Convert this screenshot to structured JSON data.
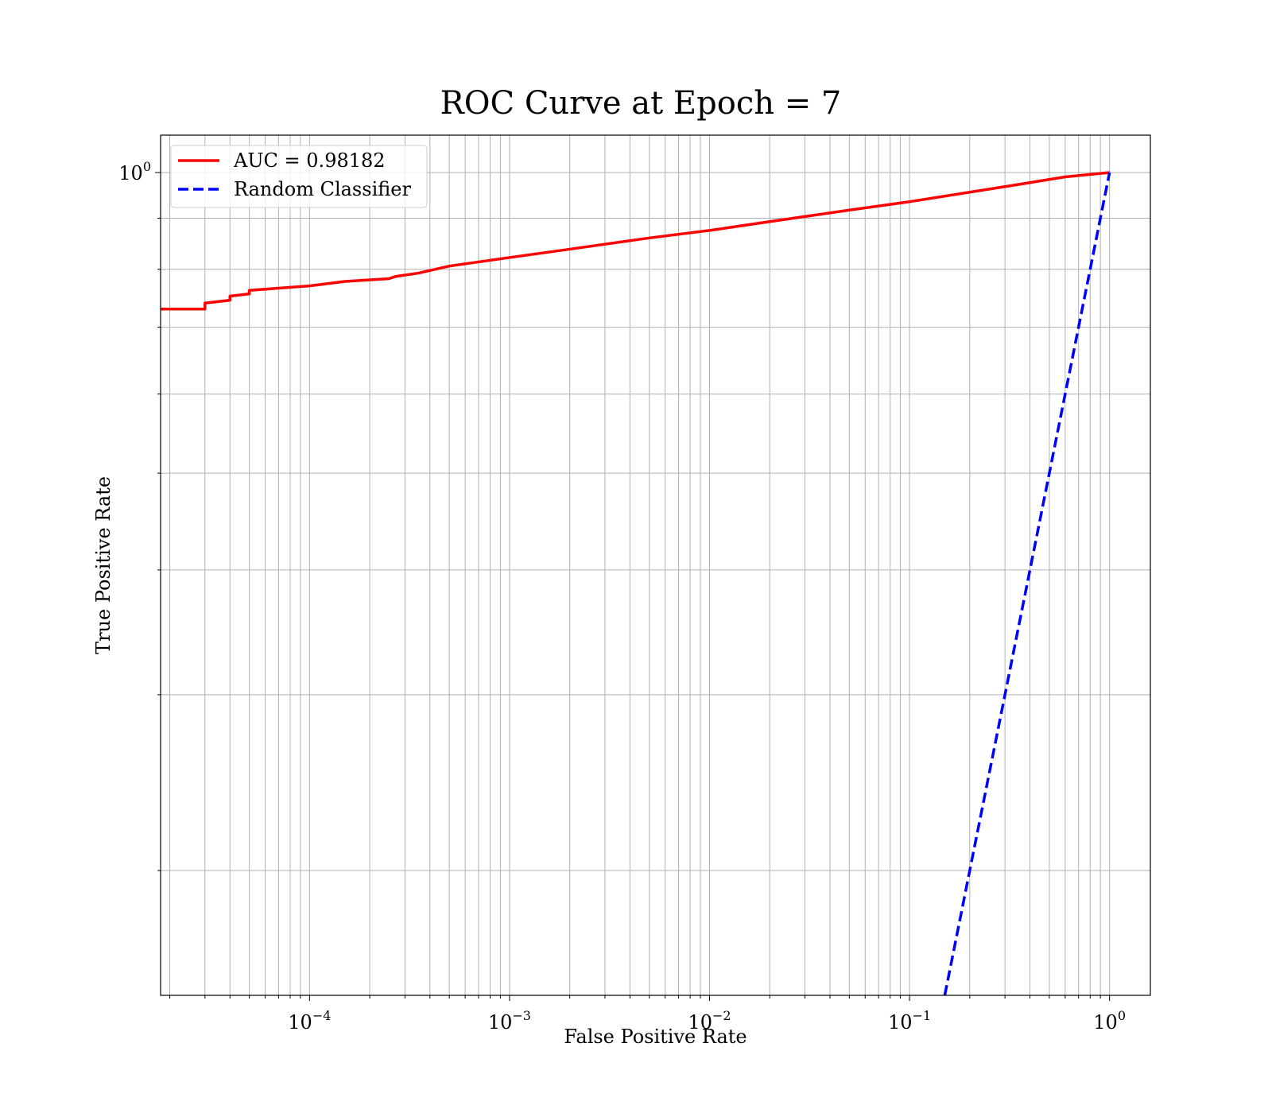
{
  "chart_data": {
    "type": "line",
    "title": "ROC Curve at Epoch = 7",
    "xlabel": "False Positive Rate",
    "ylabel": "True Positive Rate",
    "xscale": "log",
    "yscale": "log",
    "xlim": [
      1.8e-05,
      1.6
    ],
    "ylim": [
      0.15,
      1.09
    ],
    "grid": true,
    "grid_minor": true,
    "legend_position": "upper-left",
    "x_tick_labels": [
      {
        "value": 0.0001,
        "base": "10",
        "exp": "−4"
      },
      {
        "value": 0.001,
        "base": "10",
        "exp": "−3"
      },
      {
        "value": 0.01,
        "base": "10",
        "exp": "−2"
      },
      {
        "value": 0.1,
        "base": "10",
        "exp": "−1"
      },
      {
        "value": 1,
        "base": "10",
        "exp": "0"
      }
    ],
    "y_tick_labels": [
      {
        "value": 1,
        "base": "10",
        "exp": "0"
      }
    ],
    "y_minor_ticks": [
      0.2,
      0.3,
      0.4,
      0.5,
      0.6,
      0.7,
      0.8,
      0.9
    ],
    "series": [
      {
        "name": "AUC = 0.98182",
        "color": "#ff0000",
        "style": "solid",
        "x": [
          1.8e-05,
          3e-05,
          3e-05,
          4e-05,
          4e-05,
          5e-05,
          5e-05,
          0.0001,
          0.00015,
          0.00025,
          0.00027,
          0.00035,
          0.0005,
          0.001,
          0.002,
          0.005,
          0.01,
          0.02,
          0.05,
          0.1,
          0.3,
          0.6,
          1.0
        ],
        "y": [
          0.73,
          0.73,
          0.74,
          0.745,
          0.752,
          0.756,
          0.762,
          0.77,
          0.778,
          0.783,
          0.787,
          0.793,
          0.806,
          0.822,
          0.838,
          0.86,
          0.875,
          0.893,
          0.917,
          0.935,
          0.968,
          0.99,
          1.0
        ]
      },
      {
        "name": "Random Classifier",
        "color": "#0000ff",
        "style": "dashed",
        "x": [
          0.15,
          1.0
        ],
        "y": [
          0.15,
          1.0
        ]
      }
    ]
  }
}
